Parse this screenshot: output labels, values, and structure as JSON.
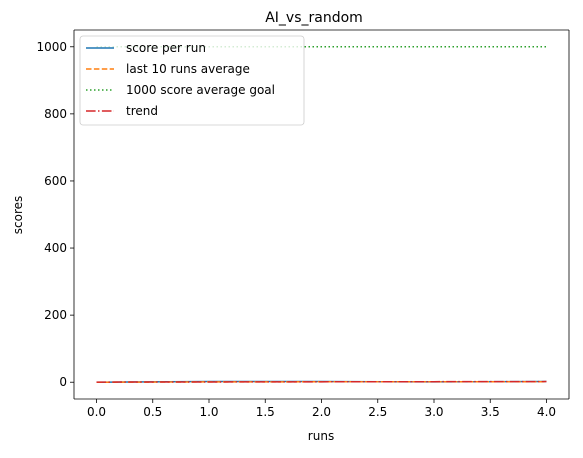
{
  "chart_data": {
    "type": "line",
    "title": "AI_vs_random",
    "xlabel": "runs",
    "ylabel": "scores",
    "xlim": [
      -0.2,
      4.2
    ],
    "ylim": [
      -50,
      1050
    ],
    "x_ticks": [
      0.0,
      0.5,
      1.0,
      1.5,
      2.0,
      2.5,
      3.0,
      3.5,
      4.0
    ],
    "x_tick_labels": [
      "0.0",
      "0.5",
      "1.0",
      "1.5",
      "2.0",
      "2.5",
      "3.0",
      "3.5",
      "4.0"
    ],
    "y_ticks": [
      0,
      200,
      400,
      600,
      800,
      1000
    ],
    "y_tick_labels": [
      "0",
      "200",
      "400",
      "600",
      "800",
      "1000"
    ],
    "grid": false,
    "legend_position": "top-left",
    "series": [
      {
        "name": "score per run",
        "color": "#1f77b4",
        "style": "solid",
        "x": [
          0,
          1,
          2,
          3,
          4
        ],
        "y": [
          0,
          2,
          2,
          1,
          2
        ]
      },
      {
        "name": "last 10 runs average",
        "color": "#ff7f0e",
        "style": "dashed",
        "x": [
          0,
          1,
          2,
          3,
          4
        ],
        "y": [
          0,
          1,
          1.3,
          1.25,
          1.4
        ]
      },
      {
        "name": "1000 score average goal",
        "color": "#2ca02c",
        "style": "dotted",
        "x": [
          0,
          1,
          2,
          3,
          4
        ],
        "y": [
          1000,
          1000,
          1000,
          1000,
          1000
        ]
      },
      {
        "name": "trend",
        "color": "#d62728",
        "style": "dashdot",
        "x": [
          0,
          1,
          2,
          3,
          4
        ],
        "y": [
          0.4,
          0.8,
          1.2,
          1.6,
          2.0
        ]
      }
    ]
  }
}
